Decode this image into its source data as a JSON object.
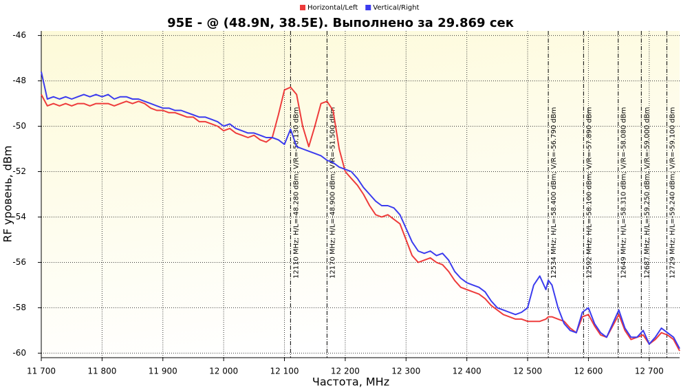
{
  "chart_data": {
    "type": "line",
    "title": "95E -  @  (48.9N, 38.5E). Выполнено за 29.869 сек",
    "x_label": "Частота, MHz",
    "y_label": "RF уровень, dBm",
    "legend": "top",
    "grid": true,
    "xlim": [
      11700,
      12750
    ],
    "ylim": [
      -60.2,
      -45.8
    ],
    "xticks": [
      {
        "value": 11700,
        "label": "11 700"
      },
      {
        "value": 11800,
        "label": "11 800"
      },
      {
        "value": 11900,
        "label": "11 900"
      },
      {
        "value": 12000,
        "label": "12 000"
      },
      {
        "value": 12100,
        "label": "12 100"
      },
      {
        "value": 12200,
        "label": "12 200"
      },
      {
        "value": 12300,
        "label": "12 300"
      },
      {
        "value": 12400,
        "label": "12 400"
      },
      {
        "value": 12500,
        "label": "12 500"
      },
      {
        "value": 12600,
        "label": "12 600"
      },
      {
        "value": 12700,
        "label": "12 700"
      }
    ],
    "yticks": [
      -46,
      -48,
      -50,
      -52,
      -54,
      -56,
      -58,
      -60
    ],
    "x": [
      11700,
      11710,
      11720,
      11730,
      11740,
      11750,
      11760,
      11770,
      11780,
      11790,
      11800,
      11810,
      11820,
      11830,
      11840,
      11850,
      11860,
      11870,
      11880,
      11890,
      11900,
      11910,
      11920,
      11930,
      11940,
      11950,
      11960,
      11970,
      11980,
      11990,
      12000,
      12010,
      12020,
      12030,
      12040,
      12050,
      12060,
      12070,
      12080,
      12090,
      12100,
      12110,
      12120,
      12130,
      12140,
      12150,
      12160,
      12170,
      12180,
      12190,
      12200,
      12210,
      12220,
      12230,
      12240,
      12250,
      12260,
      12270,
      12280,
      12290,
      12300,
      12310,
      12320,
      12330,
      12340,
      12350,
      12360,
      12370,
      12380,
      12390,
      12400,
      12410,
      12420,
      12430,
      12440,
      12450,
      12460,
      12470,
      12480,
      12490,
      12500,
      12510,
      12520,
      12530,
      12534,
      12540,
      12550,
      12560,
      12570,
      12580,
      12590,
      12600,
      12610,
      12620,
      12630,
      12640,
      12650,
      12660,
      12670,
      12680,
      12690,
      12700,
      12710,
      12720,
      12730,
      12740,
      12750
    ],
    "series": [
      {
        "name": "Horizontal/Left",
        "color": "#ee3b3b",
        "values": [
          -48.6,
          -49.1,
          -49.0,
          -49.1,
          -49.0,
          -49.1,
          -49.0,
          -49.0,
          -49.1,
          -49.0,
          -49.0,
          -49.0,
          -49.1,
          -49.0,
          -48.9,
          -49.0,
          -48.9,
          -49.0,
          -49.2,
          -49.3,
          -49.3,
          -49.4,
          -49.4,
          -49.5,
          -49.6,
          -49.6,
          -49.8,
          -49.8,
          -49.9,
          -50.0,
          -50.2,
          -50.1,
          -50.3,
          -50.4,
          -50.5,
          -50.4,
          -50.6,
          -50.7,
          -50.5,
          -49.5,
          -48.4,
          -48.28,
          -48.6,
          -50.0,
          -50.9,
          -50.0,
          -49.0,
          -48.9,
          -49.3,
          -51.0,
          -52.0,
          -52.3,
          -52.6,
          -53.0,
          -53.5,
          -53.9,
          -54.0,
          -53.9,
          -54.1,
          -54.3,
          -55.0,
          -55.7,
          -56.0,
          -55.9,
          -55.8,
          -56.0,
          -56.1,
          -56.4,
          -56.8,
          -57.1,
          -57.2,
          -57.3,
          -57.4,
          -57.6,
          -57.9,
          -58.1,
          -58.3,
          -58.4,
          -58.5,
          -58.5,
          -58.6,
          -58.6,
          -58.6,
          -58.5,
          -58.4,
          -58.4,
          -58.5,
          -58.6,
          -58.9,
          -59.1,
          -58.4,
          -58.3,
          -58.8,
          -59.2,
          -59.3,
          -58.8,
          -58.3,
          -59.0,
          -59.4,
          -59.3,
          -59.2,
          -59.6,
          -59.4,
          -59.1,
          -59.2,
          -59.4,
          -59.9
        ]
      },
      {
        "name": "Vertical/Right",
        "color": "#3b3bee",
        "values": [
          -47.6,
          -48.8,
          -48.7,
          -48.8,
          -48.7,
          -48.8,
          -48.7,
          -48.6,
          -48.7,
          -48.6,
          -48.7,
          -48.6,
          -48.8,
          -48.7,
          -48.7,
          -48.8,
          -48.8,
          -48.9,
          -49.0,
          -49.1,
          -49.2,
          -49.2,
          -49.3,
          -49.3,
          -49.4,
          -49.5,
          -49.6,
          -49.6,
          -49.7,
          -49.8,
          -50.0,
          -49.9,
          -50.1,
          -50.2,
          -50.3,
          -50.3,
          -50.4,
          -50.5,
          -50.5,
          -50.6,
          -50.8,
          -50.13,
          -50.9,
          -51.0,
          -51.1,
          -51.2,
          -51.3,
          -51.5,
          -51.6,
          -51.8,
          -51.9,
          -52.0,
          -52.3,
          -52.7,
          -53.0,
          -53.3,
          -53.5,
          -53.5,
          -53.6,
          -53.9,
          -54.5,
          -55.1,
          -55.5,
          -55.6,
          -55.5,
          -55.7,
          -55.6,
          -55.9,
          -56.4,
          -56.7,
          -56.9,
          -57.0,
          -57.1,
          -57.3,
          -57.7,
          -58.0,
          -58.1,
          -58.2,
          -58.3,
          -58.2,
          -58.0,
          -57.0,
          -56.6,
          -57.2,
          -56.79,
          -57.0,
          -58.0,
          -58.7,
          -59.0,
          -59.1,
          -58.2,
          -58.0,
          -58.7,
          -59.1,
          -59.3,
          -58.7,
          -58.1,
          -58.9,
          -59.3,
          -59.3,
          -59.0,
          -59.6,
          -59.3,
          -58.9,
          -59.1,
          -59.3,
          -59.8
        ]
      }
    ],
    "markers": [
      {
        "x": 12110,
        "label": "12110 MHz;  H/L=-48.280 dBm;  V/R=-50.130 dBm"
      },
      {
        "x": 12170,
        "label": "12170 MHz;  H/L=-48.900 dBm;  V/R=-51.500 dBm"
      },
      {
        "x": 12534,
        "label": "12534 MHz;  H/L=-58.400 dBm;  V/R=-56.790 dBm"
      },
      {
        "x": 12592,
        "label": "12592 MHz;  H/L=-58.100 dBm;  V/R=-57.890 dBm"
      },
      {
        "x": 12649,
        "label": "12649 MHz;  H/L=-58.310 dBm;  V/R=-58.080 dBm"
      },
      {
        "x": 12687,
        "label": "12687 MHz;  H/L=-59.250 dBm;  V/R=-59.000 dBm"
      },
      {
        "x": 12729,
        "label": "12729 MHz;  H/L=-59.240 dBm;  V/R=-59.100 dBm"
      }
    ]
  }
}
